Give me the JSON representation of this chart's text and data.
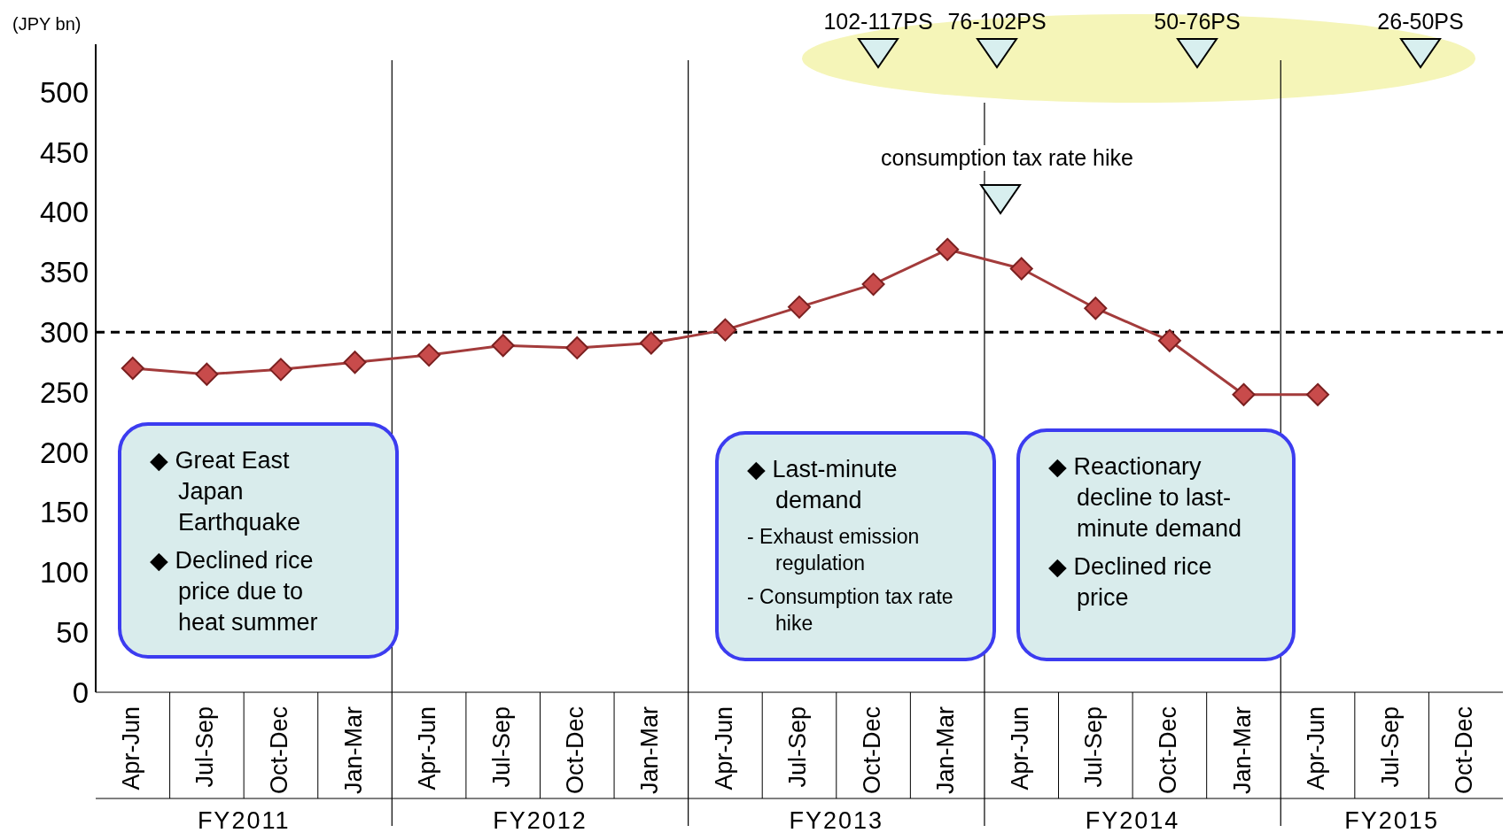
{
  "chart_data": {
    "type": "line",
    "ylabel": "(JPY bn)",
    "categories": [
      "Apr-Jun",
      "Jul-Sep",
      "Oct-Dec",
      "Jan-Mar",
      "Apr-Jun",
      "Jul-Sep",
      "Oct-Dec",
      "Jan-Mar",
      "Apr-Jun",
      "Jul-Sep",
      "Oct-Dec",
      "Jan-Mar",
      "Apr-Jun",
      "Jul-Sep",
      "Oct-Dec",
      "Jan-Mar",
      "Apr-Jun",
      "Jul-Sep",
      "Oct-Dec"
    ],
    "series": [
      {
        "color": "#a33b3b",
        "values": [
          270,
          265,
          269,
          275,
          281,
          289,
          287,
          291,
          302,
          321,
          340,
          369,
          353,
          320,
          293,
          248,
          248,
          null,
          null
        ]
      }
    ],
    "ylim": [
      0,
      540
    ],
    "yticks": [
      0,
      50,
      100,
      150,
      200,
      250,
      300,
      350,
      400,
      450,
      500
    ],
    "ref_lines": [
      {
        "axis": "y",
        "value": 300,
        "color": "#000000",
        "line_style": "dashed"
      }
    ],
    "marker": "diamond",
    "legend": false,
    "grid": false,
    "annotations": [
      "FY2011",
      "FY2012",
      "FY2013",
      "FY2014",
      "FY2015",
      "102-117PS",
      "76-102PS",
      "50-76PS",
      "26-50PS",
      "consumption tax rate hike",
      "◆ Great East Japan Earthquake",
      "◆ Declined rice price due to heat summer",
      "◆ Last-minute demand",
      "- Exhaust  emission regulation",
      "- Consumption tax rate hike",
      "◆ Reactionary decline to last-minute demand",
      "◆ Declined rice price"
    ]
  }
}
